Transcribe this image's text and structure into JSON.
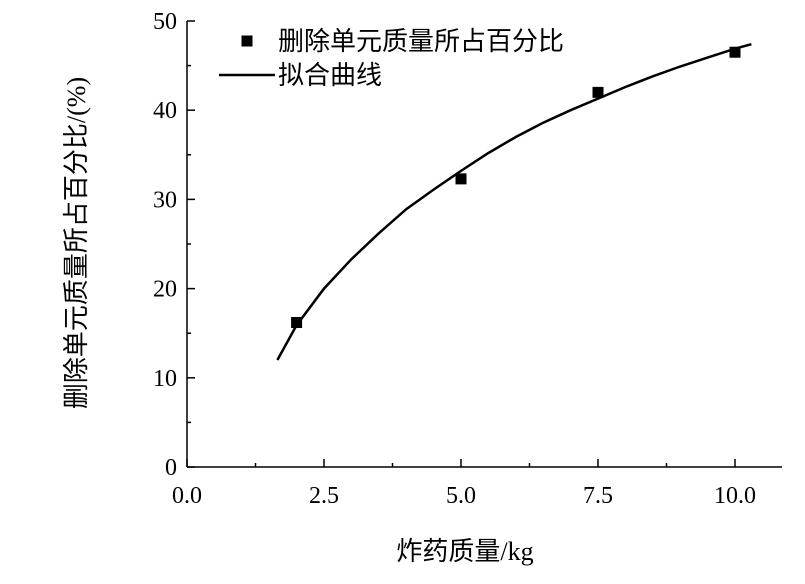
{
  "chart_data": {
    "type": "scatter",
    "xlabel": "炸药质量/kg",
    "ylabel": "删除单元质量所占百分比/(%)",
    "xlim": [
      0.0,
      11.0
    ],
    "ylim": [
      0,
      50
    ],
    "x_ticks": [
      "0.0",
      "2.5",
      "5.0",
      "7.5",
      "10.0"
    ],
    "x_tick_values": [
      0.0,
      2.5,
      5.0,
      7.5,
      10.0
    ],
    "y_ticks": [
      "0",
      "10",
      "20",
      "30",
      "40",
      "50"
    ],
    "y_tick_values": [
      0,
      10,
      20,
      30,
      40,
      50
    ],
    "grid": false,
    "legend_position": "top-left",
    "series": [
      {
        "name": "删除单元质量所占百分比",
        "kind": "scatter",
        "marker": "square",
        "color": "#000000",
        "x": [
          2.0,
          5.0,
          7.5,
          10.0
        ],
        "y": [
          16.2,
          32.3,
          42.0,
          46.5
        ]
      },
      {
        "name": "拟合曲线",
        "kind": "line",
        "color": "#000000",
        "x": [
          1.65,
          2.0,
          2.5,
          3.0,
          3.5,
          4.0,
          4.5,
          5.0,
          5.5,
          6.0,
          6.5,
          7.0,
          7.5,
          8.0,
          8.5,
          9.0,
          9.5,
          10.0,
          10.3
        ],
        "y": [
          12.0,
          15.9,
          20.0,
          23.3,
          26.2,
          28.9,
          31.1,
          33.2,
          35.2,
          37.0,
          38.6,
          40.0,
          41.3,
          42.6,
          43.8,
          44.9,
          45.9,
          46.9,
          47.4
        ]
      }
    ]
  }
}
